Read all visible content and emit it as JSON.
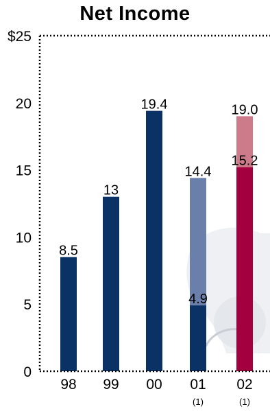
{
  "chart_data": {
    "type": "bar",
    "title": "Net Income",
    "categories": [
      "98",
      "99",
      "00",
      "01",
      "02"
    ],
    "category_notes": [
      "",
      "",
      "",
      "(1)",
      "(1)"
    ],
    "ylim": [
      0,
      25
    ],
    "yticks": [
      {
        "value": 0,
        "label": "0"
      },
      {
        "value": 5,
        "label": "5"
      },
      {
        "value": 10,
        "label": "10"
      },
      {
        "value": 15,
        "label": "15"
      },
      {
        "value": 20,
        "label": "20"
      },
      {
        "value": 25,
        "label": "$25"
      }
    ],
    "grid": false,
    "axis_style": "dotted",
    "bars": [
      {
        "category": "98",
        "segments": [
          {
            "value": 8.5,
            "label": "8.5",
            "color": "#0a3265"
          }
        ]
      },
      {
        "category": "99",
        "segments": [
          {
            "value": 13,
            "label": "13",
            "color": "#0a3265"
          }
        ]
      },
      {
        "category": "00",
        "segments": [
          {
            "value": 19.4,
            "label": "19.4",
            "color": "#0a3265"
          }
        ]
      },
      {
        "category": "01",
        "segments": [
          {
            "value": 4.9,
            "label": "4.9",
            "color": "#0a3265"
          },
          {
            "value": 14.4,
            "label": "14.4",
            "color": "#6a80ab"
          }
        ]
      },
      {
        "category": "02",
        "segments": [
          {
            "value": 15.2,
            "label": "15.2",
            "color": "#a3003f"
          },
          {
            "value": 19.0,
            "label": "19.0",
            "color": "#cd7a8a"
          }
        ]
      }
    ]
  }
}
